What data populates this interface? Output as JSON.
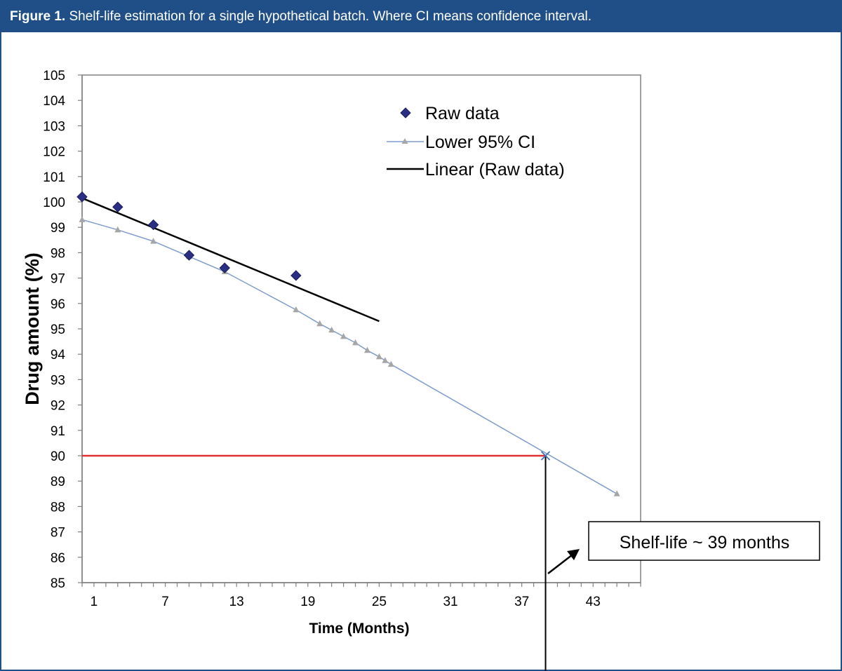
{
  "header": {
    "figure_label": "Figure 1.",
    "caption": " Shelf-life estimation for a single hypothetical batch. Where CI means confidence interval."
  },
  "colors": {
    "header_bg": "#1f4f86",
    "raw": "#2b2f84",
    "ci": "#7f9ccc",
    "ci_marker": "#a6a6a6",
    "linear": "#000000",
    "spec_line": "#e03030"
  },
  "chart_data": {
    "type": "scatter",
    "title": "",
    "xlabel": "Time (Months)",
    "ylabel": "Drug amount (%)",
    "xlim": [
      0,
      47
    ],
    "ylim": [
      85,
      105
    ],
    "x_ticks": [
      1,
      7,
      13,
      19,
      25,
      31,
      37,
      43
    ],
    "y_ticks": [
      85,
      86,
      87,
      88,
      89,
      90,
      91,
      92,
      93,
      94,
      95,
      96,
      97,
      98,
      99,
      100,
      101,
      102,
      103,
      104,
      105
    ],
    "grid": false,
    "legend_position": "top-right",
    "series": [
      {
        "name": "Raw data",
        "kind": "scatter",
        "marker": "diamond",
        "x": [
          0,
          3,
          6,
          9,
          12,
          18
        ],
        "y": [
          100.2,
          99.8,
          99.1,
          97.9,
          97.4,
          97.1
        ]
      },
      {
        "name": "Lower 95% CI",
        "kind": "line",
        "marker": "triangle",
        "x": [
          0,
          3,
          6,
          9,
          12,
          18,
          20,
          21,
          22,
          23,
          24,
          25,
          25.5,
          26,
          45
        ],
        "y": [
          99.3,
          98.9,
          98.45,
          97.85,
          97.25,
          95.75,
          95.2,
          94.95,
          94.7,
          94.45,
          94.15,
          93.9,
          93.75,
          93.6,
          88.5
        ]
      },
      {
        "name": "Linear (Raw data)",
        "kind": "line",
        "x": [
          0,
          25
        ],
        "y": [
          100.15,
          95.3
        ]
      }
    ],
    "annotations": {
      "spec_limit": {
        "y": 90,
        "x_end": 39
      },
      "crossing_marker": {
        "x": 39,
        "y": 90
      },
      "shelf_life_label": "Shelf-life ~ 39 months"
    }
  }
}
